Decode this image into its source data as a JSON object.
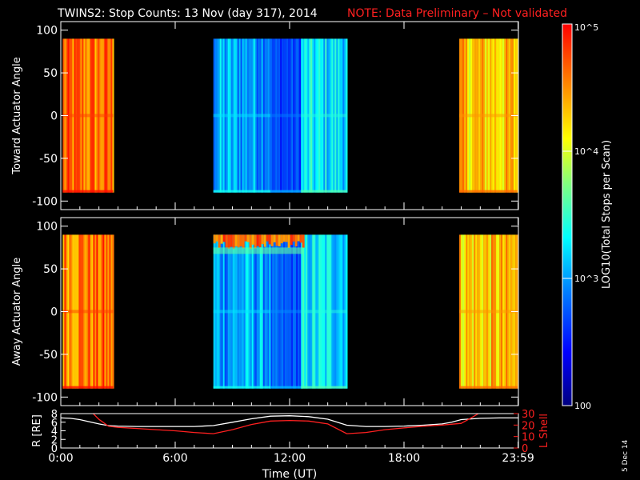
{
  "title": {
    "main": "TWINS2: Stop Counts: 13 Nov (day 317), 2014",
    "note": "NOTE: Data Preliminary – Not validated",
    "note_color": "#ff2020"
  },
  "date_stamp": "5 Dec 14",
  "colorbar": {
    "label": "LOG10(Total Stops per Scan)",
    "ticks": [
      {
        "value": 100,
        "label": "100"
      },
      {
        "value": 1000,
        "label": "10^3"
      },
      {
        "value": 10000,
        "label": "10^4"
      },
      {
        "value": 100000,
        "label": "10^5"
      }
    ],
    "range": [
      100,
      100000
    ],
    "scale": "log",
    "colormap": [
      "#00007f",
      "#0000ff",
      "#0080ff",
      "#00ffff",
      "#80ff80",
      "#ffff00",
      "#ff8000",
      "#ff0000"
    ]
  },
  "chart_data": [
    {
      "type": "heatmap",
      "name": "toward",
      "ylabel": "Toward Actuator Angle",
      "xlim": [
        0,
        24
      ],
      "ylim": [
        -110,
        110
      ],
      "yticks": [
        100,
        50,
        0,
        -50,
        -100
      ],
      "data_yrange": [
        -90,
        90
      ],
      "segments": [
        {
          "t_start": 0.1,
          "t_end": 2.75,
          "level": "orange-red",
          "value_log": 4.6
        },
        {
          "t_start": 8.0,
          "t_end": 11.0,
          "level": "cyan-blue",
          "value_log": 3.0
        },
        {
          "t_start": 11.0,
          "t_end": 12.6,
          "level": "blue",
          "value_log": 2.65
        },
        {
          "t_start": 12.6,
          "t_end": 15.0,
          "level": "cyan",
          "value_log": 3.2
        },
        {
          "t_start": 20.9,
          "t_end": 23.95,
          "level": "yellow-orange",
          "value_log": 4.3
        }
      ]
    },
    {
      "type": "heatmap",
      "name": "away",
      "ylabel": "Away Actuator Angle",
      "xlim": [
        0,
        24
      ],
      "ylim": [
        -110,
        110
      ],
      "yticks": [
        100,
        50,
        0,
        -50,
        -100
      ],
      "data_yrange": [
        -90,
        90
      ],
      "segments": [
        {
          "t_start": 0.1,
          "t_end": 2.75,
          "level": "orange-red",
          "value_log": 4.6
        },
        {
          "t_start": 8.0,
          "t_end": 11.0,
          "level": "cyan-blue",
          "value_log": 3.0
        },
        {
          "t_start": 11.0,
          "t_end": 12.6,
          "level": "blue",
          "value_log": 2.7
        },
        {
          "t_start": 12.6,
          "t_end": 15.0,
          "level": "cyan",
          "value_log": 3.2
        },
        {
          "t_start": 20.9,
          "t_end": 23.95,
          "level": "yellow-orange",
          "value_log": 4.3
        }
      ]
    },
    {
      "type": "line",
      "name": "orbit",
      "xlabel": "Time (UT)",
      "xlim": [
        0,
        24
      ],
      "xticks": [
        {
          "value": 0,
          "label": "0:00"
        },
        {
          "value": 6,
          "label": "6:00"
        },
        {
          "value": 12,
          "label": "12:00"
        },
        {
          "value": 18,
          "label": "18:00"
        },
        {
          "value": 23.983,
          "label": "23:59"
        }
      ],
      "left_axis": {
        "label": "R [RE]",
        "ylim": [
          0,
          8
        ],
        "ticks": [
          0,
          2,
          4,
          6,
          8
        ],
        "color": "#ffffff"
      },
      "right_axis": {
        "label": "L Shell",
        "ylim": [
          0,
          30
        ],
        "ticks": [
          0,
          10,
          20,
          30
        ],
        "color": "#ff2020"
      },
      "series": [
        {
          "axis": "left",
          "color": "#ffffff",
          "x": [
            0,
            0.5,
            1,
            1.5,
            2,
            2.5,
            3,
            4,
            5,
            6,
            7,
            8,
            9,
            10,
            11,
            12,
            13,
            14,
            15,
            16,
            17,
            18,
            19,
            20,
            20.5,
            21,
            22,
            23,
            24
          ],
          "y": [
            7.0,
            6.9,
            6.6,
            6.1,
            5.6,
            5.2,
            5.1,
            5.0,
            5.0,
            5.0,
            5.0,
            5.2,
            6.0,
            6.8,
            7.4,
            7.5,
            7.3,
            6.7,
            5.3,
            5.0,
            5.0,
            5.1,
            5.3,
            5.6,
            6.0,
            6.6,
            6.9,
            7.0,
            7.0
          ]
        },
        {
          "axis": "right",
          "color": "#ff2020",
          "x": [
            1.7,
            2.0,
            2.5,
            3.0,
            4.0,
            5.0,
            6.0,
            7.0,
            8.0,
            9.0,
            10.0,
            11.0,
            12.0,
            13.0,
            14.0,
            15.0,
            16.0,
            17.0,
            18.0,
            19.0,
            20.0,
            21.0,
            21.5,
            22.0
          ],
          "y": [
            30.0,
            25.0,
            19.0,
            18.0,
            17.0,
            16.0,
            15.0,
            13.5,
            12.5,
            16.0,
            20.5,
            23.5,
            24.0,
            23.5,
            21.0,
            12.5,
            13.5,
            16.0,
            17.5,
            19.0,
            20.0,
            21.5,
            26.0,
            31.0
          ]
        }
      ]
    }
  ]
}
